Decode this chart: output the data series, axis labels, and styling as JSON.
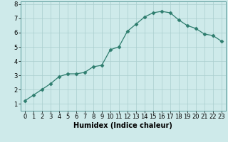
{
  "title": "",
  "xlabel": "Humidex (Indice chaleur)",
  "ylabel": "",
  "x": [
    0,
    1,
    2,
    3,
    4,
    5,
    6,
    7,
    8,
    9,
    10,
    11,
    12,
    13,
    14,
    15,
    16,
    17,
    18,
    19,
    20,
    21,
    22,
    23
  ],
  "y": [
    1.2,
    1.6,
    2.0,
    2.4,
    2.9,
    3.1,
    3.1,
    3.2,
    3.6,
    3.7,
    4.8,
    5.0,
    6.1,
    6.6,
    7.1,
    7.4,
    7.5,
    7.4,
    6.9,
    6.5,
    6.3,
    5.9,
    5.8,
    5.4
  ],
  "line_color": "#2e7d6e",
  "marker": "D",
  "marker_size": 2.5,
  "bg_color": "#ceeaea",
  "grid_color": "#aacece",
  "ylim": [
    0.5,
    8.2
  ],
  "xlim": [
    -0.5,
    23.5
  ],
  "yticks": [
    1,
    2,
    3,
    4,
    5,
    6,
    7,
    8
  ],
  "xticks": [
    0,
    1,
    2,
    3,
    4,
    5,
    6,
    7,
    8,
    9,
    10,
    11,
    12,
    13,
    14,
    15,
    16,
    17,
    18,
    19,
    20,
    21,
    22,
    23
  ],
  "label_fontsize": 7,
  "tick_fontsize": 6
}
